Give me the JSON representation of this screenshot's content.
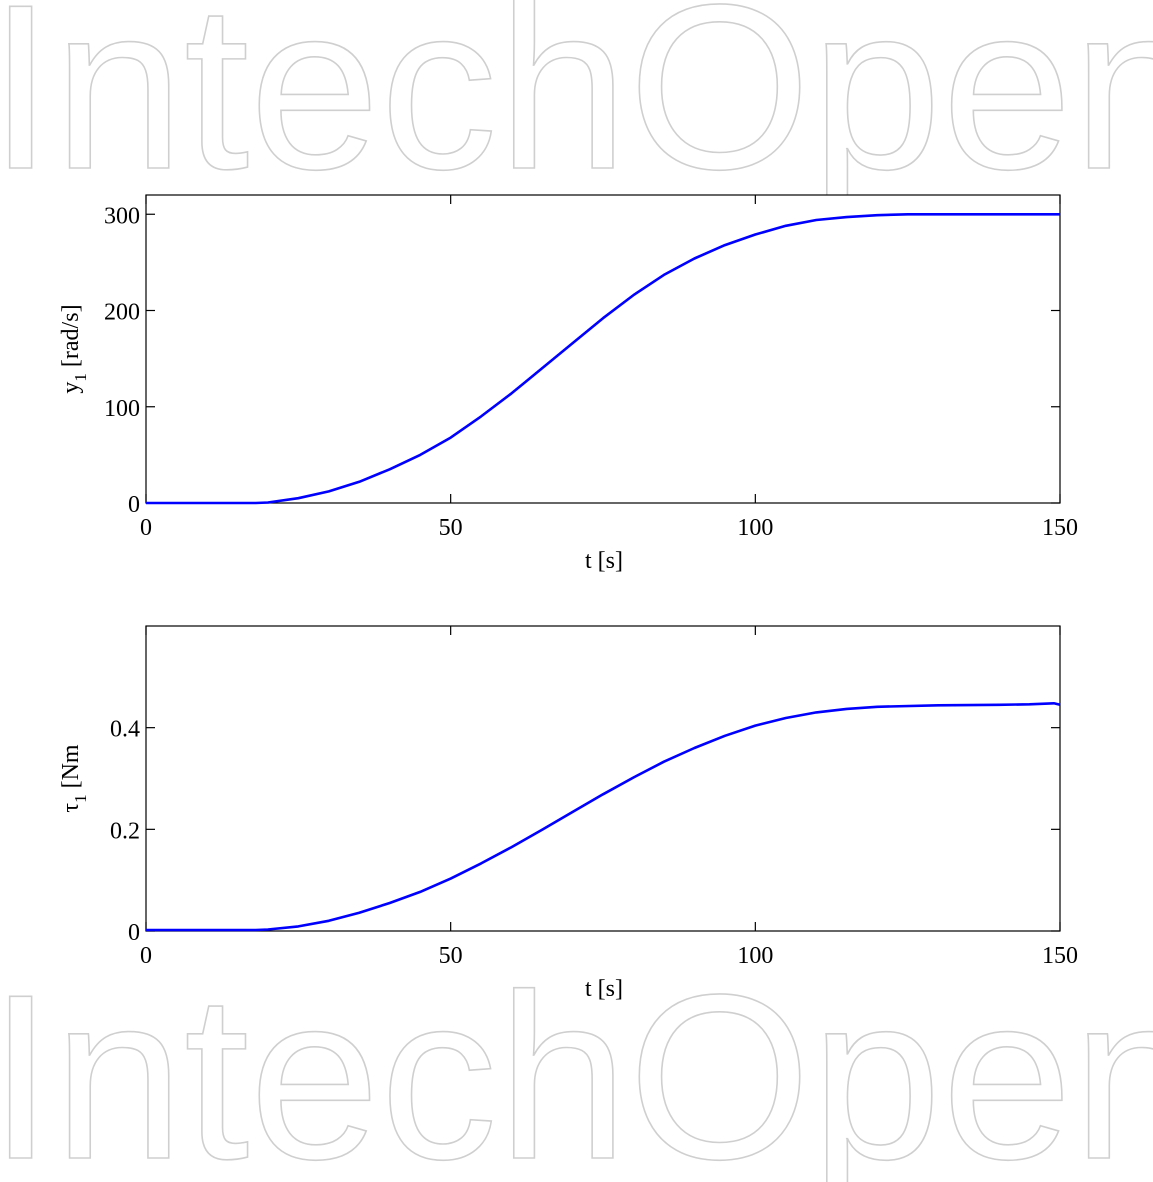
{
  "watermark": {
    "text": "IntechOpen",
    "color": "#cfcfcf"
  },
  "chart_data": [
    {
      "type": "line",
      "xlabel": "t [s]",
      "ylabel": "y",
      "ylabel_sub": "1",
      "ylabel_unit": " [rad/s]",
      "xlim": [
        0,
        150
      ],
      "ylim": [
        0,
        320
      ],
      "xticks": [
        0,
        50,
        100,
        150
      ],
      "yticks": [
        0,
        100,
        200,
        300
      ],
      "grid": false,
      "series": [
        {
          "color": "#0000ff",
          "x": [
            0,
            10,
            18,
            20,
            25,
            30,
            35,
            40,
            45,
            50,
            55,
            60,
            65,
            70,
            75,
            80,
            85,
            90,
            95,
            100,
            105,
            110,
            115,
            120,
            125,
            130,
            140,
            150
          ],
          "y": [
            0,
            0,
            0,
            0.5,
            5,
            12,
            22,
            35,
            50,
            68,
            90,
            114,
            140,
            166,
            192,
            216,
            237,
            254,
            268,
            279,
            288,
            294,
            297,
            299,
            300,
            300,
            300,
            300
          ]
        }
      ]
    },
    {
      "type": "line",
      "xlabel": "t [s]",
      "ylabel": "τ",
      "ylabel_sub": "1",
      "ylabel_unit": " [Nm",
      "xlim": [
        0,
        150
      ],
      "ylim": [
        0,
        0.6
      ],
      "xticks": [
        0,
        50,
        100,
        150
      ],
      "yticks": [
        0,
        0.2,
        0.4
      ],
      "ytick_labels": [
        "0",
        "0.2",
        "0.4"
      ],
      "grid": false,
      "series": [
        {
          "color": "#0000ff",
          "x": [
            0,
            10,
            18,
            20,
            25,
            30,
            35,
            40,
            45,
            50,
            55,
            60,
            65,
            70,
            75,
            80,
            85,
            90,
            95,
            100,
            105,
            110,
            115,
            120,
            130,
            140,
            145,
            149,
            150
          ],
          "y": [
            0.002,
            0.002,
            0.002,
            0.003,
            0.009,
            0.02,
            0.036,
            0.055,
            0.077,
            0.103,
            0.133,
            0.165,
            0.199,
            0.234,
            0.269,
            0.302,
            0.333,
            0.36,
            0.384,
            0.404,
            0.419,
            0.43,
            0.437,
            0.441,
            0.444,
            0.445,
            0.446,
            0.448,
            0.445
          ]
        }
      ]
    }
  ]
}
